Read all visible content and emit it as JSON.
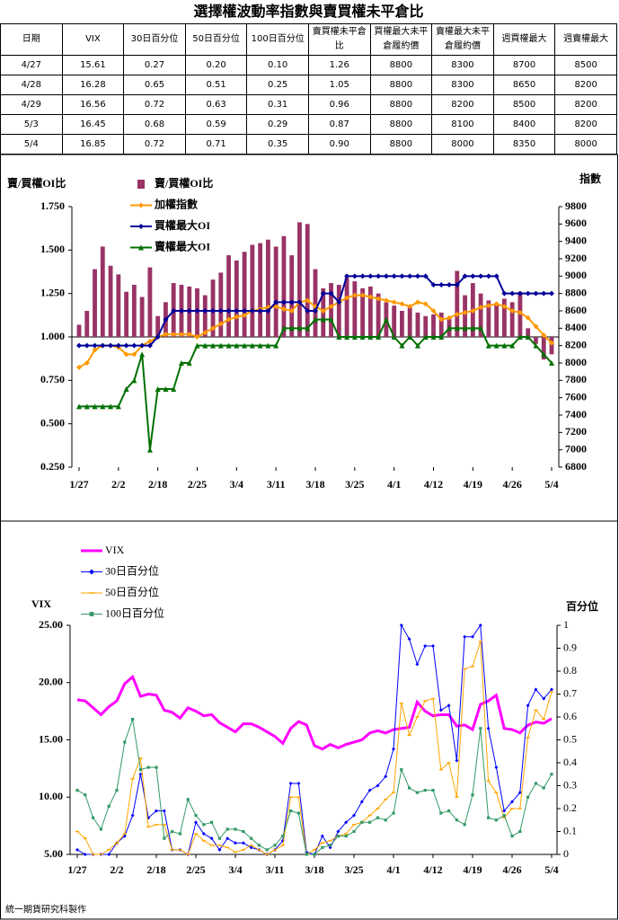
{
  "table": {
    "title": "選擇權波動率指數與賣買權未平倉比",
    "header": [
      "日期",
      "VIX",
      "30日百分位",
      "50日百分位",
      "100日百分位",
      "賣買權未平倉比",
      "買權最大未平倉履約價",
      "賣權最大未平倉履約價",
      "週買權最大",
      "週賣權最大"
    ],
    "rows": [
      [
        "4/27",
        "15.61",
        "0.27",
        "0.20",
        "0.10",
        "1.26",
        "8800",
        "8300",
        "8700",
        "8500"
      ],
      [
        "4/28",
        "16.28",
        "0.65",
        "0.51",
        "0.25",
        "1.05",
        "8800",
        "8300",
        "8650",
        "8200"
      ],
      [
        "4/29",
        "16.56",
        "0.72",
        "0.63",
        "0.31",
        "0.96",
        "8800",
        "8200",
        "8500",
        "8200"
      ],
      [
        "5/3",
        "16.45",
        "0.68",
        "0.59",
        "0.29",
        "0.87",
        "8800",
        "8100",
        "8400",
        "8200"
      ],
      [
        "5/4",
        "16.85",
        "0.72",
        "0.71",
        "0.35",
        "0.90",
        "8800",
        "8000",
        "8350",
        "8000"
      ]
    ]
  },
  "chart_data": [
    {
      "type": "combo",
      "y_label": "賣/買權OI比",
      "y2_label": "指數",
      "xaxis_crosses": 1,
      "categories": [
        "1/27",
        null,
        null,
        null,
        null,
        "2/2",
        null,
        null,
        null,
        null,
        "2/18",
        null,
        null,
        null,
        null,
        "2/25",
        null,
        null,
        null,
        null,
        "3/4",
        null,
        null,
        null,
        null,
        "3/11",
        null,
        null,
        null,
        null,
        "3/18",
        null,
        null,
        null,
        null,
        "3/25",
        null,
        null,
        null,
        null,
        "4/1",
        null,
        null,
        null,
        null,
        "4/12",
        null,
        null,
        null,
        null,
        "4/19",
        null,
        null,
        null,
        null,
        "4/26",
        null,
        null,
        null,
        null,
        "5/4"
      ],
      "ylim": [
        0.25,
        1.75
      ],
      "yticks": [
        {
          "value": 0.25,
          "label": "0.250"
        },
        {
          "value": 0.5,
          "label": "0.500"
        },
        {
          "value": 0.75,
          "label": "0.750"
        },
        {
          "value": 1,
          "label": "1.000"
        },
        {
          "value": 1.25,
          "label": "1.250"
        },
        {
          "value": 1.5,
          "label": "1.500"
        },
        {
          "value": 1.75,
          "label": "1.750"
        }
      ],
      "y2lim": [
        6800,
        9800
      ],
      "y2ticks": [
        6800,
        7000,
        7200,
        7400,
        7600,
        7800,
        8000,
        8200,
        8400,
        8600,
        8800,
        9000,
        9200,
        9400,
        9600,
        9800
      ],
      "series": [
        {
          "name": "賣/買權OI比",
          "kind": "bar",
          "color": "#993366",
          "values": [
            1.07,
            1.15,
            1.39,
            1.52,
            1.41,
            1.36,
            1.26,
            1.3,
            1.23,
            1.4,
            1.12,
            1.2,
            1.31,
            1.3,
            1.29,
            1.28,
            1.24,
            1.33,
            1.37,
            1.47,
            1.44,
            1.49,
            1.53,
            1.54,
            1.56,
            1.52,
            1.58,
            1.47,
            1.66,
            1.65,
            1.39,
            1.28,
            1.31,
            1.3,
            1.34,
            1.32,
            1.28,
            1.29,
            1.25,
            1.2,
            1.18,
            1.15,
            1.17,
            1.14,
            1.12,
            1.13,
            1.14,
            1.11,
            1.38,
            1.24,
            1.31,
            1.25,
            1.21,
            1.19,
            1.22,
            1.2,
            1.26,
            1.05,
            0.96,
            0.87,
            0.9
          ]
        },
        {
          "name": "加權指數",
          "kind": "line",
          "axis": "y2",
          "color": "#ff9900",
          "marker": "diamond",
          "width": 2,
          "values": [
            7950,
            8000,
            8150,
            8200,
            8200,
            8180,
            8100,
            8100,
            8200,
            8250,
            8300,
            8330,
            8330,
            8330,
            8330,
            8300,
            8350,
            8400,
            8450,
            8500,
            8530,
            8550,
            8600,
            8620,
            8640,
            8650,
            8620,
            8600,
            8700,
            8720,
            8650,
            8600,
            8650,
            8700,
            8750,
            8780,
            8780,
            8760,
            8740,
            8720,
            8700,
            8680,
            8650,
            8700,
            8680,
            8600,
            8500,
            8520,
            8560,
            8580,
            8600,
            8640,
            8660,
            8680,
            8650,
            8600,
            8580,
            8520,
            8420,
            8320,
            8230
          ]
        },
        {
          "name": "買權最大OI",
          "kind": "line",
          "axis": "y2",
          "color": "#000099",
          "marker": "diamond",
          "width": 2,
          "values": [
            8200,
            8200,
            8200,
            8200,
            8200,
            8200,
            8200,
            8200,
            8200,
            8200,
            8300,
            8500,
            8600,
            8600,
            8600,
            8600,
            8600,
            8600,
            8600,
            8600,
            8600,
            8600,
            8600,
            8600,
            8600,
            8700,
            8700,
            8700,
            8700,
            8600,
            8600,
            8800,
            8800,
            8700,
            9000,
            9000,
            9000,
            9000,
            9000,
            9000,
            9000,
            9000,
            9000,
            9000,
            9000,
            8900,
            8900,
            8900,
            8900,
            9000,
            9000,
            9000,
            9000,
            9000,
            8800,
            8800,
            8800,
            8800,
            8800,
            8800,
            8800
          ]
        },
        {
          "name": "賣權最大OI",
          "kind": "line",
          "axis": "y2",
          "color": "#007000",
          "marker": "triangle",
          "width": 2,
          "values": [
            7500,
            7500,
            7500,
            7500,
            7500,
            7500,
            7700,
            7800,
            8100,
            7000,
            7700,
            7700,
            7700,
            8000,
            8000,
            8200,
            8200,
            8200,
            8200,
            8200,
            8200,
            8200,
            8200,
            8200,
            8200,
            8200,
            8400,
            8400,
            8400,
            8400,
            8500,
            8500,
            8500,
            8300,
            8300,
            8300,
            8300,
            8300,
            8300,
            8500,
            8300,
            8200,
            8300,
            8200,
            8300,
            8300,
            8300,
            8400,
            8400,
            8400,
            8400,
            8400,
            8200,
            8200,
            8200,
            8200,
            8300,
            8300,
            8200,
            8100,
            8000
          ]
        }
      ]
    },
    {
      "type": "line",
      "y_label": "VIX",
      "y2_label": "百分位",
      "categories": [
        "1/27",
        null,
        null,
        null,
        null,
        "2/2",
        null,
        null,
        null,
        null,
        "2/18",
        null,
        null,
        null,
        null,
        "2/25",
        null,
        null,
        null,
        null,
        "3/4",
        null,
        null,
        null,
        null,
        "3/11",
        null,
        null,
        null,
        null,
        "3/18",
        null,
        null,
        null,
        null,
        "3/25",
        null,
        null,
        null,
        null,
        "4/1",
        null,
        null,
        null,
        null,
        "4/12",
        null,
        null,
        null,
        null,
        "4/19",
        null,
        null,
        null,
        null,
        "4/26",
        null,
        null,
        null,
        null,
        "5/4"
      ],
      "ylim": [
        5,
        25
      ],
      "yticks": [
        {
          "value": 5,
          "label": "5.00"
        },
        {
          "value": 10,
          "label": "10.00"
        },
        {
          "value": 15,
          "label": "15.00"
        },
        {
          "value": 20,
          "label": "20.00"
        },
        {
          "value": 25,
          "label": "25.00"
        }
      ],
      "y2lim": [
        0,
        1
      ],
      "y2ticks": [
        0,
        0.1,
        0.2,
        0.3,
        0.4,
        0.5,
        0.6,
        0.7,
        0.8,
        0.9,
        1
      ],
      "series": [
        {
          "name": "VIX",
          "kind": "line",
          "color": "#ff00ff",
          "marker": "none",
          "width": 3,
          "values": [
            18.5,
            18.4,
            17.8,
            17.2,
            17.9,
            18.4,
            19.9,
            20.5,
            18.8,
            19.0,
            18.9,
            17.6,
            17.4,
            16.9,
            17.8,
            17.5,
            17.1,
            17.2,
            16.5,
            16.1,
            15.7,
            16.4,
            16.4,
            16.1,
            15.7,
            15.3,
            14.7,
            16.0,
            16.6,
            16.3,
            14.5,
            14.2,
            14.6,
            14.3,
            14.6,
            14.8,
            15.0,
            15.6,
            15.8,
            15.6,
            15.9,
            16.0,
            16.1,
            18.3,
            17.5,
            17.1,
            17.2,
            17.2,
            16.2,
            16.3,
            15.9,
            18.1,
            18.4,
            18.9,
            16.0,
            15.9,
            15.61,
            16.28,
            16.56,
            16.45,
            16.85
          ]
        },
        {
          "name": "30日百分位",
          "kind": "line",
          "axis": "y2",
          "color": "#0000ff",
          "marker": "diamond",
          "width": 1,
          "values": [
            0.02,
            0,
            0,
            0,
            0,
            0.05,
            0.08,
            0.17,
            0.35,
            0.16,
            0.19,
            0.19,
            0.02,
            0.02,
            0,
            0.14,
            0.09,
            0.07,
            0.02,
            0.07,
            0.05,
            0.05,
            0.03,
            0.02,
            0,
            0.02,
            0.06,
            0.31,
            0.31,
            0.01,
            0,
            0.08,
            0.03,
            0.1,
            0.14,
            0.17,
            0.23,
            0.28,
            0.3,
            0.34,
            0.46,
            1.0,
            0.94,
            0.83,
            0.91,
            0.91,
            0.63,
            0.65,
            0.41,
            0.95,
            0.95,
            1.0,
            0.55,
            0.38,
            0.19,
            0.23,
            0.27,
            0.65,
            0.72,
            0.68,
            0.72
          ]
        },
        {
          "name": "50日百分位",
          "kind": "line",
          "axis": "y2",
          "color": "#ffa500",
          "marker": "dash",
          "width": 1,
          "values": [
            0.1,
            0.07,
            0,
            0,
            0.02,
            0.05,
            0.09,
            0.33,
            0.42,
            0.12,
            0.13,
            0.13,
            0.02,
            0.02,
            0,
            0.09,
            0.06,
            0.04,
            0.04,
            0.03,
            0.01,
            0.02,
            0.04,
            0.02,
            0,
            0.02,
            0.04,
            0.25,
            0.25,
            0,
            0.02,
            0.05,
            0.06,
            0.08,
            0.09,
            0.13,
            0.14,
            0.17,
            0.2,
            0.24,
            0.27,
            0.66,
            0.52,
            0.6,
            0.67,
            0.68,
            0.37,
            0.4,
            0.25,
            0.81,
            0.82,
            0.93,
            0.32,
            0.27,
            0.16,
            0.2,
            0.2,
            0.51,
            0.63,
            0.59,
            0.71
          ]
        },
        {
          "name": "100日百分位",
          "kind": "line",
          "axis": "y2",
          "color": "#339966",
          "marker": "square",
          "width": 1,
          "values": [
            0.28,
            0.26,
            0.16,
            0.11,
            0.21,
            0.28,
            0.49,
            0.59,
            0.37,
            0.38,
            0.38,
            0.07,
            0.1,
            0.09,
            0.24,
            0.17,
            0.13,
            0.14,
            0.07,
            0.11,
            0.11,
            0.1,
            0.07,
            0.04,
            0.02,
            0.04,
            0.08,
            0.19,
            0.18,
            0,
            0,
            0.03,
            0.04,
            0.08,
            0.08,
            0.1,
            0.14,
            0.14,
            0.16,
            0.15,
            0.18,
            0.37,
            0.29,
            0.27,
            0.28,
            0.28,
            0.18,
            0.19,
            0.15,
            0.13,
            0.26,
            0.55,
            0.16,
            0.15,
            0.17,
            0.08,
            0.1,
            0.25,
            0.31,
            0.29,
            0.35
          ]
        }
      ]
    }
  ],
  "footer": "統一期貨研究科製作"
}
